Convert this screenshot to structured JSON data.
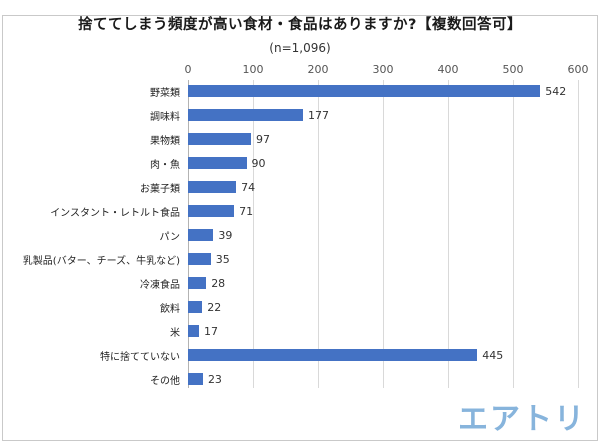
{
  "title": "捨ててしまう頻度が高い食材・食品はありますか?【複数回答可】",
  "subtitle": "(n=1,096)",
  "watermark": "エアトリ",
  "colors": {
    "bar": "#4472c4",
    "grid": "#d9d9d9",
    "axis": "#b3b3b3",
    "watermark": "#87b4dc"
  },
  "chart_data": {
    "type": "bar",
    "orientation": "horizontal",
    "title": "捨ててしまう頻度が高い食材・食品はありますか?【複数回答可】",
    "subtitle": "(n=1,096)",
    "categories": [
      "野菜類",
      "調味料",
      "果物類",
      "肉・魚",
      "お菓子類",
      "インスタント・レトルト食品",
      "パン",
      "乳製品(バター、チーズ、牛乳など)",
      "冷凍食品",
      "飲料",
      "米",
      "特に捨てていない",
      "その他"
    ],
    "values": [
      542,
      177,
      97,
      90,
      74,
      71,
      39,
      35,
      28,
      22,
      17,
      445,
      23
    ],
    "xlim": [
      0,
      600
    ],
    "xticks": [
      0,
      100,
      200,
      300,
      400,
      500,
      600
    ],
    "grid": true,
    "legend": false,
    "value_labels": true
  }
}
